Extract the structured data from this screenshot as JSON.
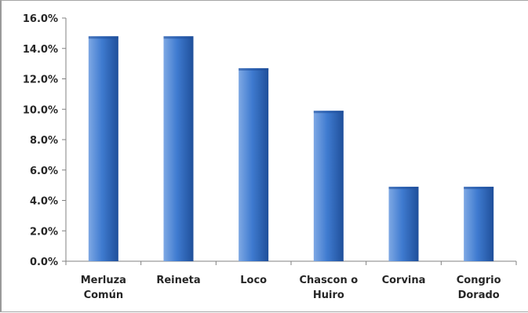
{
  "colors": {
    "bar_light": "#7ea8e4",
    "bar_mid": "#3f7bd0",
    "bar_dark": "#1f4f9a",
    "axis": "#808080"
  },
  "chart_data": {
    "type": "bar",
    "categories": [
      [
        "Merluza",
        "Común"
      ],
      [
        "Reineta"
      ],
      [
        "Loco"
      ],
      [
        "Chascon o",
        "Huiro"
      ],
      [
        "Corvina"
      ],
      [
        "Congrio",
        "Dorado"
      ]
    ],
    "values": [
      14.8,
      14.8,
      12.7,
      9.9,
      4.9,
      4.9
    ],
    "ylim": [
      0,
      16
    ],
    "yticks": [
      "0.0%",
      "2.0%",
      "4.0%",
      "6.0%",
      "8.0%",
      "10.0%",
      "12.0%",
      "14.0%",
      "16.0%"
    ],
    "grid": false,
    "legend": "none"
  }
}
